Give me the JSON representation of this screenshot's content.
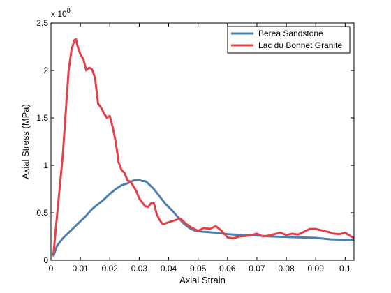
{
  "chart_data": {
    "type": "line",
    "xlabel": "Axial Strain",
    "ylabel": "Axial Stress (MPa)",
    "multiplier_base": "x 10",
    "multiplier_exp": "8",
    "xlim": [
      0,
      0.103
    ],
    "ylim": [
      0,
      250000000
    ],
    "y_scale_factor": 100000000,
    "xticks": [
      0,
      0.01,
      0.02,
      0.03,
      0.04,
      0.05,
      0.06,
      0.07,
      0.08,
      0.09,
      0.1
    ],
    "xtick_labels": [
      "0",
      "0.01",
      "0.02",
      "0.03",
      "0.04",
      "0.05",
      "0.06",
      "0.07",
      "0.08",
      "0.09",
      "0.1"
    ],
    "yticks": [
      0,
      50000000,
      100000000,
      150000000,
      200000000,
      250000000
    ],
    "ytick_labels": [
      "0",
      "0.5",
      "1",
      "1.5",
      "2",
      "2.5"
    ],
    "grid": false,
    "legend_position": "top-right",
    "series": [
      {
        "name": "Berea Sandstone",
        "color": "#4a7fb0",
        "points": [
          [
            0.0008,
            4000000
          ],
          [
            0.002,
            15000000
          ],
          [
            0.004,
            23000000
          ],
          [
            0.006,
            29000000
          ],
          [
            0.008,
            35000000
          ],
          [
            0.01,
            41000000
          ],
          [
            0.012,
            47000000
          ],
          [
            0.014,
            54000000
          ],
          [
            0.016,
            59000000
          ],
          [
            0.018,
            64000000
          ],
          [
            0.02,
            70000000
          ],
          [
            0.022,
            75000000
          ],
          [
            0.024,
            79000000
          ],
          [
            0.026,
            81000000
          ],
          [
            0.028,
            84000000
          ],
          [
            0.03,
            84500000
          ],
          [
            0.031,
            83500000
          ],
          [
            0.032,
            83500000
          ],
          [
            0.033,
            81000000
          ],
          [
            0.035,
            75000000
          ],
          [
            0.037,
            67000000
          ],
          [
            0.039,
            59000000
          ],
          [
            0.041,
            53000000
          ],
          [
            0.043,
            46000000
          ],
          [
            0.045,
            39000000
          ],
          [
            0.047,
            34000000
          ],
          [
            0.049,
            31000000
          ],
          [
            0.052,
            30000000
          ],
          [
            0.056,
            29000000
          ],
          [
            0.06,
            27500000
          ],
          [
            0.065,
            26500000
          ],
          [
            0.07,
            26000000
          ],
          [
            0.075,
            25000000
          ],
          [
            0.08,
            24500000
          ],
          [
            0.085,
            24000000
          ],
          [
            0.09,
            23500000
          ],
          [
            0.095,
            22000000
          ],
          [
            0.1,
            21500000
          ],
          [
            0.103,
            21500000
          ]
        ]
      },
      {
        "name": "Lac du Bonnet Granite",
        "color": "#e34048",
        "points": [
          [
            0.0008,
            5000000
          ],
          [
            0.002,
            45000000
          ],
          [
            0.004,
            110000000
          ],
          [
            0.006,
            200000000
          ],
          [
            0.007,
            222000000
          ],
          [
            0.008,
            232000000
          ],
          [
            0.0085,
            233000000
          ],
          [
            0.009,
            226000000
          ],
          [
            0.01,
            217000000
          ],
          [
            0.011,
            212000000
          ],
          [
            0.012,
            200000000
          ],
          [
            0.013,
            203000000
          ],
          [
            0.014,
            201000000
          ],
          [
            0.015,
            192000000
          ],
          [
            0.016,
            165000000
          ],
          [
            0.017,
            161000000
          ],
          [
            0.018,
            155000000
          ],
          [
            0.019,
            150000000
          ],
          [
            0.02,
            152000000
          ],
          [
            0.021,
            140000000
          ],
          [
            0.022,
            125000000
          ],
          [
            0.023,
            103000000
          ],
          [
            0.024,
            95000000
          ],
          [
            0.025,
            92000000
          ],
          [
            0.026,
            84000000
          ],
          [
            0.027,
            83000000
          ],
          [
            0.028,
            78000000
          ],
          [
            0.029,
            73000000
          ],
          [
            0.03,
            65000000
          ],
          [
            0.031,
            61000000
          ],
          [
            0.032,
            57000000
          ],
          [
            0.033,
            56000000
          ],
          [
            0.034,
            60000000
          ],
          [
            0.035,
            60000000
          ],
          [
            0.036,
            48000000
          ],
          [
            0.037,
            42000000
          ],
          [
            0.038,
            38000000
          ],
          [
            0.04,
            40000000
          ],
          [
            0.042,
            42000000
          ],
          [
            0.044,
            44000000
          ],
          [
            0.046,
            38000000
          ],
          [
            0.048,
            34000000
          ],
          [
            0.05,
            31000000
          ],
          [
            0.052,
            34000000
          ],
          [
            0.054,
            33000000
          ],
          [
            0.056,
            36000000
          ],
          [
            0.058,
            31000000
          ],
          [
            0.06,
            24000000
          ],
          [
            0.062,
            23000000
          ],
          [
            0.064,
            25000000
          ],
          [
            0.066,
            25500000
          ],
          [
            0.068,
            26500000
          ],
          [
            0.07,
            28000000
          ],
          [
            0.072,
            25000000
          ],
          [
            0.074,
            26000000
          ],
          [
            0.076,
            27500000
          ],
          [
            0.078,
            29000000
          ],
          [
            0.08,
            26500000
          ],
          [
            0.082,
            28000000
          ],
          [
            0.084,
            27000000
          ],
          [
            0.086,
            30000000
          ],
          [
            0.088,
            33000000
          ],
          [
            0.09,
            33000000
          ],
          [
            0.092,
            31500000
          ],
          [
            0.094,
            30000000
          ],
          [
            0.096,
            28000000
          ],
          [
            0.098,
            27500000
          ],
          [
            0.1,
            29000000
          ],
          [
            0.102,
            25000000
          ],
          [
            0.103,
            23500000
          ]
        ]
      }
    ]
  }
}
